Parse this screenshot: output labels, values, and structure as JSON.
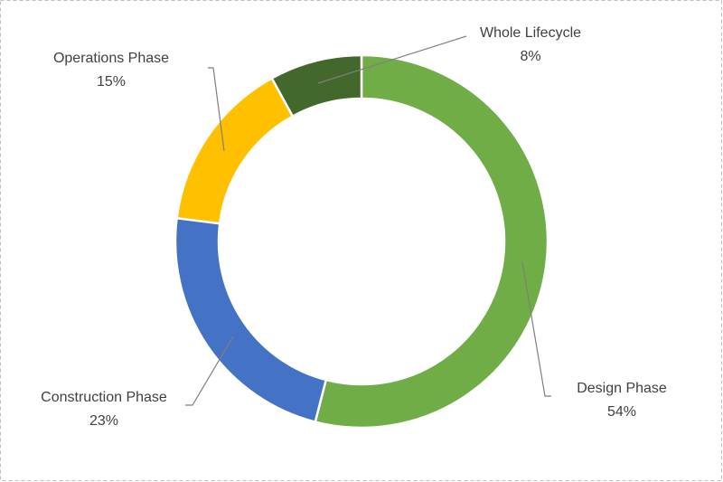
{
  "chart_data": {
    "type": "donut",
    "categories": [
      "Design Phase",
      "Construction Phase",
      "Operations Phase",
      "Whole Lifecycle"
    ],
    "values": [
      54,
      23,
      15,
      8
    ],
    "value_labels": [
      "54%",
      "23%",
      "15%",
      "8%"
    ],
    "colors": [
      "#70ad47",
      "#4472c4",
      "#ffc000",
      "#43682b"
    ]
  }
}
